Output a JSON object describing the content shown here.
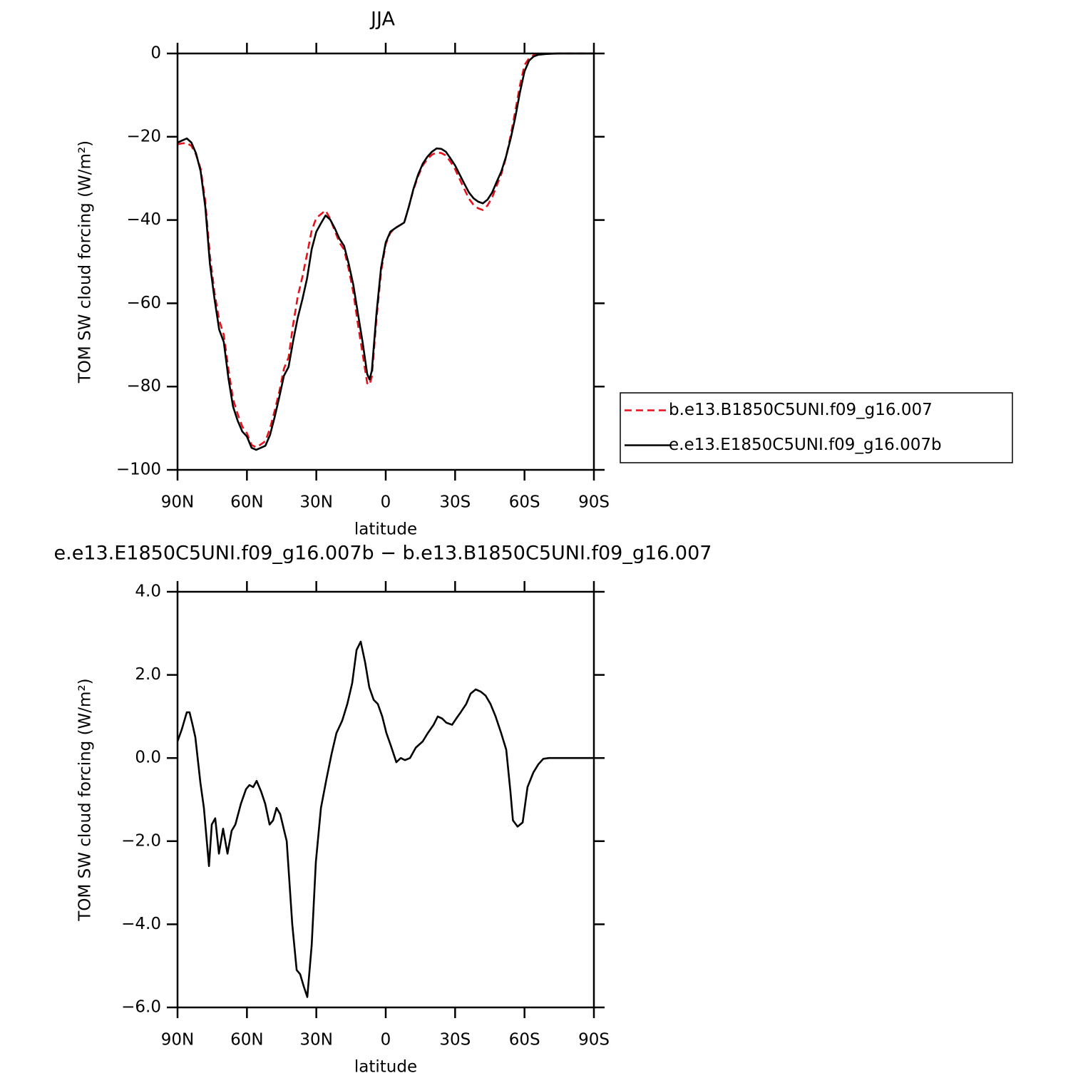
{
  "chart_data": [
    {
      "type": "line",
      "title": "JJA",
      "xlabel": "latitude",
      "ylabel": "TOM SW cloud forcing (W/m²)",
      "x": [
        90,
        88,
        86,
        84,
        82,
        80,
        78,
        76,
        74,
        72,
        70,
        68,
        66,
        64,
        62,
        60,
        58,
        56,
        54,
        52,
        50,
        48,
        46,
        44,
        42,
        40,
        38,
        36,
        34,
        32,
        30,
        28,
        26,
        24,
        22,
        20,
        18,
        16,
        14,
        12,
        10,
        8,
        7,
        6,
        4,
        2,
        0,
        -2,
        -4,
        -6,
        -8,
        -10,
        -12,
        -14,
        -16,
        -18,
        -20,
        -22,
        -24,
        -26,
        -28,
        -30,
        -32,
        -34,
        -36,
        -38,
        -40,
        -42,
        -44,
        -46,
        -48,
        -50,
        -52,
        -54,
        -56,
        -58,
        -60,
        -62,
        -64,
        -66,
        -70,
        -75,
        -80,
        -85,
        -90
      ],
      "series": [
        {
          "name": "b.e13.B1850C5UNI.f09_g16.007",
          "color": "#e8111b",
          "style": "dashed",
          "values": [
            -21.8,
            -21.6,
            -21.5,
            -22.2,
            -24.3,
            -27.7,
            -35.5,
            -48.5,
            -57.5,
            -64,
            -67.6,
            -75.8,
            -83,
            -86.6,
            -89.6,
            -91.2,
            -94.0,
            -94.6,
            -93.9,
            -93.1,
            -90.0,
            -85.8,
            -81.2,
            -75.7,
            -73,
            -65,
            -58.3,
            -53.6,
            -48.2,
            -42.5,
            -39.5,
            -38.6,
            -37.7,
            -39.7,
            -42.6,
            -45.4,
            -47.1,
            -51.8,
            -57.4,
            -65.1,
            -72.1,
            -79.2,
            -79.6,
            -77.6,
            -63.8,
            -52.4,
            -45.8,
            -43.1,
            -41.9,
            -41.3,
            -40.6,
            -36.8,
            -32.7,
            -29.5,
            -26.9,
            -25.4,
            -24.3,
            -23.8,
            -23.9,
            -24.5,
            -26.0,
            -27.8,
            -30.2,
            -32.6,
            -34.9,
            -36.4,
            -37.2,
            -37.6,
            -36.5,
            -34.6,
            -31.7,
            -28.9,
            -25.0,
            -19.7,
            -13.9,
            -7.7,
            -2.8,
            -1.1,
            -0.4,
            -0.15,
            -0.1,
            0,
            0,
            0,
            0
          ]
        },
        {
          "name": "e.e13.E1850C5UNI.f09_g16.007b",
          "color": "#000000",
          "style": "solid",
          "values": [
            -21.4,
            -20.9,
            -20.4,
            -21.4,
            -24,
            -28.3,
            -36.8,
            -50.5,
            -59,
            -66.3,
            -69.3,
            -78,
            -84.8,
            -88.2,
            -90.8,
            -92,
            -94.7,
            -95.2,
            -94.7,
            -94.2,
            -91.6,
            -87.3,
            -82.5,
            -77.4,
            -75.3,
            -69,
            -63.4,
            -59,
            -54,
            -47,
            -42.8,
            -40.8,
            -38.9,
            -39.9,
            -42,
            -44.5,
            -46.2,
            -50.5,
            -55.6,
            -62.5,
            -69.3,
            -77,
            -78.3,
            -76.2,
            -62.5,
            -51.4,
            -45.4,
            -42.8,
            -42,
            -41.3,
            -40.6,
            -36.8,
            -32.5,
            -29.1,
            -26.5,
            -24.8,
            -23.6,
            -22.8,
            -22.9,
            -23.6,
            -25.2,
            -26.9,
            -29.1,
            -31.3,
            -33.4,
            -34.8,
            -35.6,
            -36,
            -35.1,
            -33.4,
            -30.8,
            -28.3,
            -24.8,
            -20.5,
            -15.4,
            -9.4,
            -4.3,
            -1.7,
            -0.7,
            -0.3,
            -0.1,
            0,
            0,
            0,
            0
          ]
        }
      ],
      "xlim": [
        90,
        -90
      ],
      "xticks": [
        {
          "value": 90,
          "label": "90N"
        },
        {
          "value": 60,
          "label": "60N"
        },
        {
          "value": 30,
          "label": "30N"
        },
        0,
        {
          "value": -30,
          "label": "30S"
        },
        {
          "value": -60,
          "label": "60S"
        },
        {
          "value": -90,
          "label": "90S"
        }
      ],
      "ylim": [
        -100,
        0
      ],
      "yticks": [
        0,
        {
          "value": -20,
          "label": "−20"
        },
        {
          "value": -40,
          "label": "−40"
        },
        {
          "value": -60,
          "label": "−60"
        },
        {
          "value": -80,
          "label": "−80"
        },
        {
          "value": -100,
          "label": "−100"
        }
      ],
      "legend": "right"
    },
    {
      "type": "line",
      "title": "e.e13.E1850C5UNI.f09_g16.007b − b.e13.B1850C5UNI.f09_g16.007",
      "xlabel": "latitude",
      "ylabel": "TOM SW cloud forcing (W/m²)",
      "x": [
        90,
        88.1,
        86,
        84.8,
        83.5,
        82.3,
        80.1,
        78.6,
        76.4,
        75.2,
        73.7,
        72.1,
        70.3,
        68.4,
        66.6,
        65,
        62.6,
        60.4,
        58.9,
        57.3,
        55.8,
        53.9,
        52.1,
        50.2,
        48.7,
        47.2,
        45.6,
        44.1,
        42.8,
        40.4,
        38.5,
        37,
        35.4,
        33.9,
        32,
        30.2,
        28,
        25.6,
        23.4,
        21.3,
        18.8,
        16.6,
        14.5,
        12.6,
        10.8,
        8.9,
        7.1,
        5.2,
        3.4,
        1.5,
        -0.3,
        -2.2,
        -4.6,
        -6.5,
        -8.3,
        -10.5,
        -13,
        -16,
        -18.2,
        -20.7,
        -22.5,
        -24.4,
        -26.2,
        -28.7,
        -30.5,
        -32.4,
        -34.8,
        -36.7,
        -38.9,
        -41,
        -43.2,
        -45.3,
        -47.5,
        -49.9,
        -52.1,
        -53.9,
        -55,
        -57,
        -59.2,
        -61.3,
        -63.8,
        -66,
        -68.1,
        -70.6,
        -90
      ],
      "series": [
        {
          "color": "#000000",
          "style": "solid",
          "values": [
            0.4,
            0.7,
            1.1,
            1.1,
            0.8,
            0.5,
            -0.6,
            -1.2,
            -2.6,
            -1.6,
            -1.45,
            -2.3,
            -1.7,
            -2.3,
            -1.75,
            -1.6,
            -1.1,
            -0.75,
            -0.65,
            -0.7,
            -0.55,
            -0.8,
            -1.1,
            -1.6,
            -1.5,
            -1.2,
            -1.35,
            -1.7,
            -2.0,
            -4.0,
            -5.1,
            -5.2,
            -5.5,
            -5.75,
            -4.5,
            -2.5,
            -1.2,
            -0.5,
            0.1,
            0.6,
            0.9,
            1.3,
            1.8,
            2.6,
            2.8,
            2.3,
            1.7,
            1.4,
            1.3,
            1.0,
            0.6,
            0.3,
            -0.1,
            0.0,
            -0.05,
            0.0,
            0.25,
            0.4,
            0.6,
            0.8,
            1.0,
            0.95,
            0.85,
            0.8,
            0.95,
            1.1,
            1.3,
            1.55,
            1.65,
            1.6,
            1.5,
            1.3,
            1.0,
            0.6,
            0.2,
            -0.8,
            -1.5,
            -1.65,
            -1.55,
            -0.7,
            -0.35,
            -0.15,
            -0.02,
            0,
            0
          ]
        }
      ],
      "xlim": [
        90,
        -90
      ],
      "xticks": [
        {
          "value": 90,
          "label": "90N"
        },
        {
          "value": 60,
          "label": "60N"
        },
        {
          "value": 30,
          "label": "30N"
        },
        0,
        {
          "value": -30,
          "label": "30S"
        },
        {
          "value": -60,
          "label": "60S"
        },
        {
          "value": -90,
          "label": "90S"
        }
      ],
      "ylim": [
        -6,
        4
      ],
      "yticks": [
        {
          "value": 4,
          "label": "4.0"
        },
        {
          "value": 2,
          "label": "2.0"
        },
        {
          "value": 0,
          "label": "0.0"
        },
        {
          "value": -2,
          "label": "−2.0"
        },
        {
          "value": -4,
          "label": "−4.0"
        },
        {
          "value": -6,
          "label": "−6.0"
        }
      ]
    }
  ]
}
